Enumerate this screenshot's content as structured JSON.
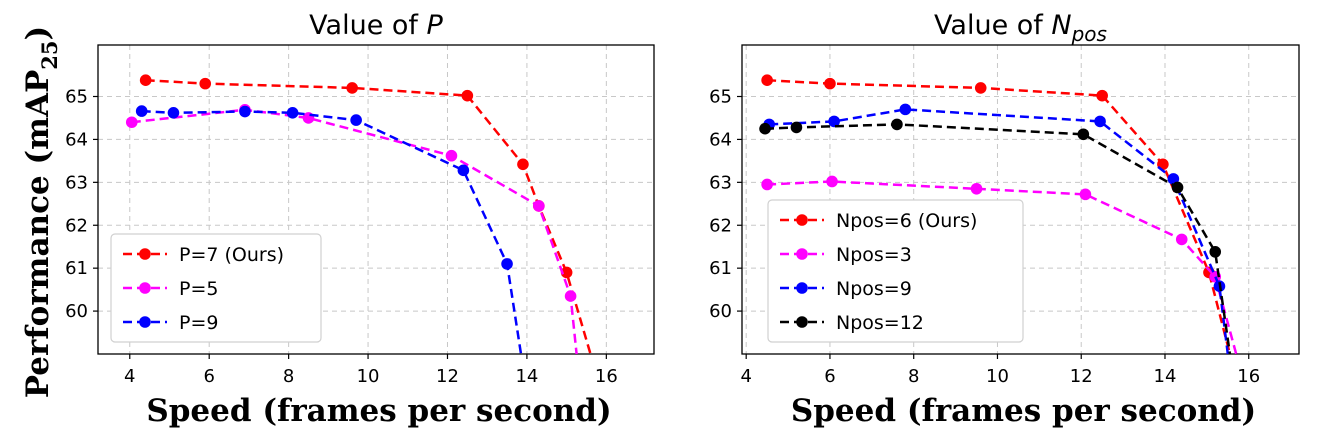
{
  "figure": {
    "ylabel": "Performance (mAP",
    "ylabel_subscript": "25",
    "ylabel_close": ")"
  },
  "chart_data": [
    {
      "type": "line",
      "title_plain": "Value of ",
      "title_italic": "P",
      "title_sub": "",
      "xlabel": "Speed (frames per second)",
      "ylabel": "Performance (mAP25)",
      "xlim": [
        3.2,
        17.2
      ],
      "ylim": [
        59,
        66.2
      ],
      "xticks": [
        4,
        6,
        8,
        10,
        12,
        14,
        16
      ],
      "yticks": [
        60,
        61,
        62,
        63,
        64,
        65
      ],
      "grid": true,
      "legend_position": "lower-left",
      "series": [
        {
          "name": "P=7 (Ours)",
          "color": "#ff0000",
          "x": [
            4.4,
            5.9,
            9.6,
            12.5,
            13.9,
            14.3,
            15.0,
            15.6
          ],
          "y": [
            65.38,
            65.3,
            65.2,
            65.02,
            63.42,
            62.45,
            60.9,
            59.0
          ],
          "markers": [
            true,
            true,
            true,
            true,
            true,
            true,
            true,
            false
          ]
        },
        {
          "name": "P=5",
          "color": "#ff00ff",
          "x": [
            4.05,
            6.9,
            8.5,
            12.1,
            14.3,
            15.1,
            15.25
          ],
          "y": [
            64.4,
            64.69,
            64.5,
            63.62,
            62.45,
            60.35,
            59.0
          ],
          "markers": [
            true,
            true,
            true,
            true,
            true,
            true,
            false
          ]
        },
        {
          "name": "P=9",
          "color": "#0000ff",
          "x": [
            4.3,
            5.1,
            6.9,
            8.1,
            9.7,
            12.4,
            13.5,
            13.85
          ],
          "y": [
            64.66,
            64.62,
            64.65,
            64.62,
            64.45,
            63.28,
            61.1,
            59.0
          ],
          "markers": [
            true,
            true,
            true,
            true,
            true,
            true,
            true,
            false
          ]
        }
      ]
    },
    {
      "type": "line",
      "title_plain": "Value of ",
      "title_italic": "N",
      "title_sub": "pos",
      "xlabel": "Speed (frames per second)",
      "ylabel": "Performance (mAP25)",
      "xlim": [
        3.9,
        17.2
      ],
      "ylim": [
        59,
        66.2
      ],
      "xticks": [
        4,
        6,
        8,
        10,
        12,
        14,
        16
      ],
      "yticks": [
        60,
        61,
        62,
        63,
        64,
        65
      ],
      "grid": true,
      "legend_position": "lower-left",
      "series": [
        {
          "name": "Npos=6 (Ours)",
          "color": "#ff0000",
          "x": [
            4.5,
            6.0,
            9.6,
            12.5,
            13.95,
            15.05,
            15.55
          ],
          "y": [
            65.38,
            65.3,
            65.2,
            65.02,
            63.42,
            60.9,
            59.0
          ],
          "markers": [
            true,
            true,
            true,
            true,
            true,
            true,
            false
          ]
        },
        {
          "name": "Npos=3",
          "color": "#ff00ff",
          "x": [
            4.5,
            6.05,
            9.5,
            12.1,
            14.4,
            15.2,
            15.7
          ],
          "y": [
            62.95,
            63.02,
            62.85,
            62.72,
            61.67,
            60.8,
            59.0
          ],
          "markers": [
            true,
            true,
            true,
            true,
            true,
            true,
            false
          ]
        },
        {
          "name": "Npos=9",
          "color": "#0000ff",
          "x": [
            4.55,
            6.1,
            7.8,
            12.45,
            14.2,
            15.3,
            15.5
          ],
          "y": [
            64.35,
            64.42,
            64.7,
            64.42,
            63.08,
            60.58,
            59.0
          ],
          "markers": [
            true,
            true,
            true,
            true,
            true,
            true,
            false
          ]
        },
        {
          "name": "Npos=12",
          "color": "#000000",
          "x": [
            4.45,
            5.2,
            7.6,
            12.05,
            14.3,
            15.2,
            15.55
          ],
          "y": [
            64.25,
            64.28,
            64.35,
            64.12,
            62.88,
            61.38,
            59.0
          ],
          "markers": [
            true,
            true,
            true,
            true,
            true,
            true,
            false
          ]
        }
      ]
    }
  ]
}
